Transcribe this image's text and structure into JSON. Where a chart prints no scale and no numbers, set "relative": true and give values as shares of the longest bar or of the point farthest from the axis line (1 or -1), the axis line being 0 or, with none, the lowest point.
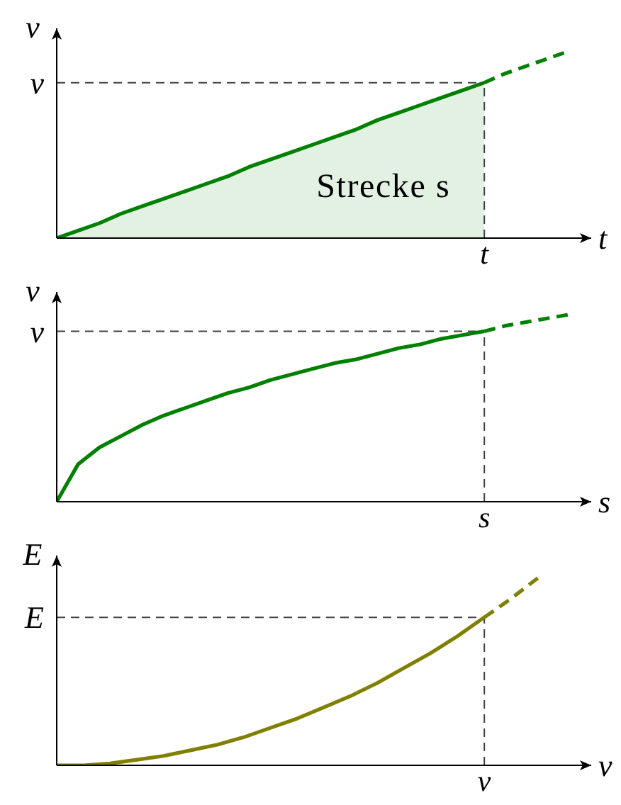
{
  "chart_data": [
    {
      "type": "line",
      "xlabel": "t",
      "ylabel": "v",
      "relative": true,
      "annotations": [
        "Strecke s"
      ],
      "categories": [
        null,
        null,
        null,
        null,
        null,
        null,
        null,
        null,
        null,
        null,
        null,
        null,
        null,
        null,
        null,
        null,
        null,
        null,
        null,
        null,
        null,
        null,
        null,
        null,
        null,
        null
      ],
      "series": [
        {
          "type": "area",
          "color": "#008000",
          "values": [
            0,
            0.04,
            0.08,
            0.13,
            0.17,
            0.21,
            0.25,
            0.29,
            0.33,
            0.38,
            0.42,
            0.46,
            0.5,
            0.54,
            0.58,
            0.63,
            0.67,
            0.71,
            0.75,
            0.79,
            0.83,
            null,
            null,
            null,
            null,
            null
          ]
        },
        {
          "color": "#008000",
          "line_style": "dashed",
          "values": [
            null,
            null,
            null,
            null,
            null,
            null,
            null,
            null,
            null,
            null,
            null,
            null,
            null,
            null,
            null,
            null,
            null,
            null,
            null,
            null,
            0.83,
            0.88,
            0.92,
            0.96,
            1,
            null
          ]
        }
      ],
      "ref_lines": [
        {
          "axis": "y",
          "value": 0.83,
          "label": "v",
          "color": "#404040",
          "line_style": "dashed"
        },
        {
          "axis": "x",
          "value": "t",
          "color": "#404040",
          "line_style": "dashed"
        }
      ]
    },
    {
      "type": "line",
      "xlabel": "s",
      "ylabel": "v",
      "relative": true,
      "categories": [
        null,
        null,
        null,
        null,
        null,
        null,
        null,
        null,
        null,
        null,
        null,
        null,
        null,
        null,
        null,
        null,
        null,
        null,
        null,
        null,
        null,
        null,
        null,
        null,
        null,
        null
      ],
      "series": [
        {
          "color": "#008000",
          "values": [
            0,
            0.2,
            0.29,
            0.35,
            0.41,
            0.46,
            0.5,
            0.54,
            0.58,
            0.61,
            0.65,
            0.68,
            0.71,
            0.74,
            0.76,
            0.79,
            0.82,
            0.84,
            0.87,
            0.89,
            0.91,
            null,
            null,
            null,
            null,
            null
          ]
        },
        {
          "color": "#008000",
          "line_style": "dashed",
          "values": [
            null,
            null,
            null,
            null,
            null,
            null,
            null,
            null,
            null,
            null,
            null,
            null,
            null,
            null,
            null,
            null,
            null,
            null,
            null,
            null,
            0.91,
            0.94,
            0.96,
            0.98,
            1,
            null
          ]
        }
      ],
      "ref_lines": [
        {
          "axis": "y",
          "value": 0.91,
          "label": "v",
          "color": "#404040",
          "line_style": "dashed"
        },
        {
          "axis": "x",
          "value": "s",
          "color": "#404040",
          "line_style": "dashed"
        }
      ]
    },
    {
      "type": "line",
      "xlabel": "v",
      "ylabel": "E",
      "relative": true,
      "categories": [
        null,
        null,
        null,
        null,
        null,
        null,
        null,
        null,
        null,
        null,
        null,
        null,
        null,
        null,
        null,
        null,
        null,
        null,
        null,
        null,
        null
      ],
      "series": [
        {
          "color": "#808000",
          "values": [
            0,
            0,
            0.01,
            0.03,
            0.05,
            0.08,
            0.11,
            0.15,
            0.2,
            0.25,
            0.31,
            0.37,
            0.44,
            0.52,
            0.6,
            0.69,
            0.79,
            null,
            null,
            null,
            null
          ]
        },
        {
          "color": "#808000",
          "line_style": "dashed",
          "values": [
            null,
            null,
            null,
            null,
            null,
            null,
            null,
            null,
            null,
            null,
            null,
            null,
            null,
            null,
            null,
            null,
            0.79,
            0.89,
            1,
            null,
            null
          ]
        }
      ],
      "ref_lines": [
        {
          "axis": "y",
          "value": 0.79,
          "label": "E",
          "color": "#404040",
          "line_style": "dashed"
        },
        {
          "axis": "x",
          "value": "v",
          "color": "#404040",
          "line_style": "dashed"
        }
      ]
    }
  ]
}
